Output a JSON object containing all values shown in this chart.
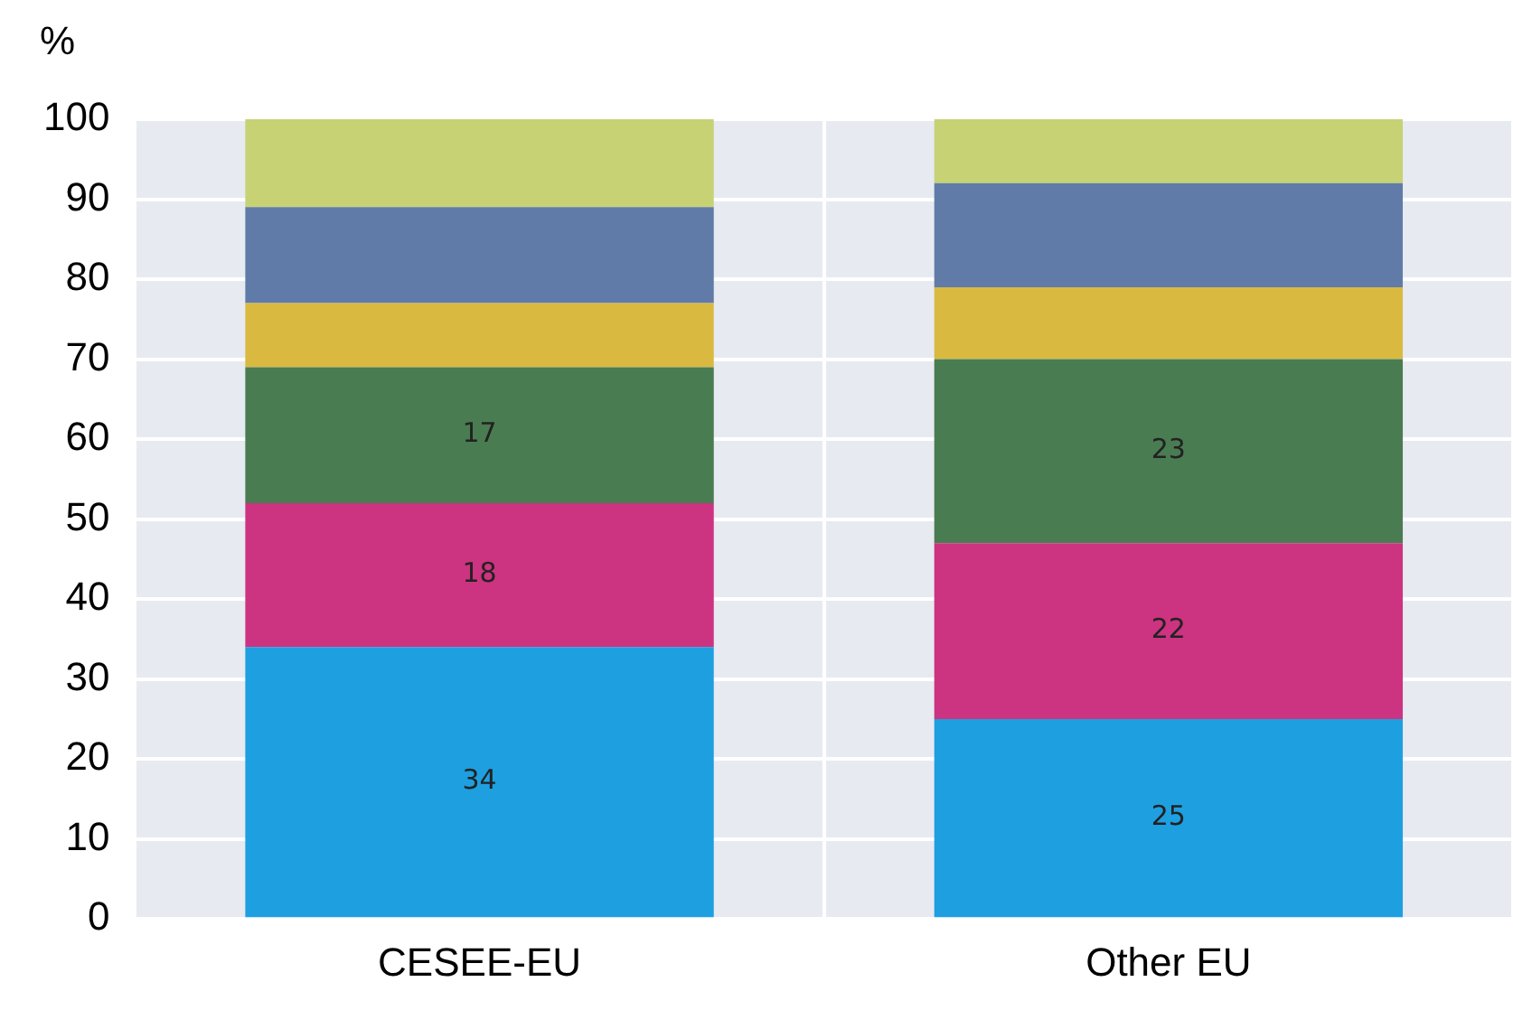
{
  "chart_data": {
    "type": "bar",
    "stacked": true,
    "ylabel": "%",
    "categories": [
      "CESEE-EU",
      "Other EU"
    ],
    "series": [
      {
        "color": "#1e9fe0",
        "values": [
          34,
          25
        ],
        "value_labels": [
          "34",
          "25"
        ]
      },
      {
        "color": "#cc3380",
        "values": [
          18,
          22
        ],
        "value_labels": [
          "18",
          "22"
        ]
      },
      {
        "color": "#4a7c52",
        "values": [
          17,
          23
        ],
        "value_labels": [
          "17",
          "23"
        ]
      },
      {
        "color": "#d9b940",
        "values": [
          8,
          9
        ]
      },
      {
        "color": "#607ba8",
        "values": [
          12,
          13
        ]
      },
      {
        "color": "#c7d274",
        "values": [
          11,
          8
        ]
      }
    ],
    "ylim": [
      0,
      100
    ],
    "yticks": [
      0,
      10,
      20,
      30,
      40,
      50,
      60,
      70,
      80,
      90,
      100
    ],
    "grid": true,
    "legend": false
  }
}
